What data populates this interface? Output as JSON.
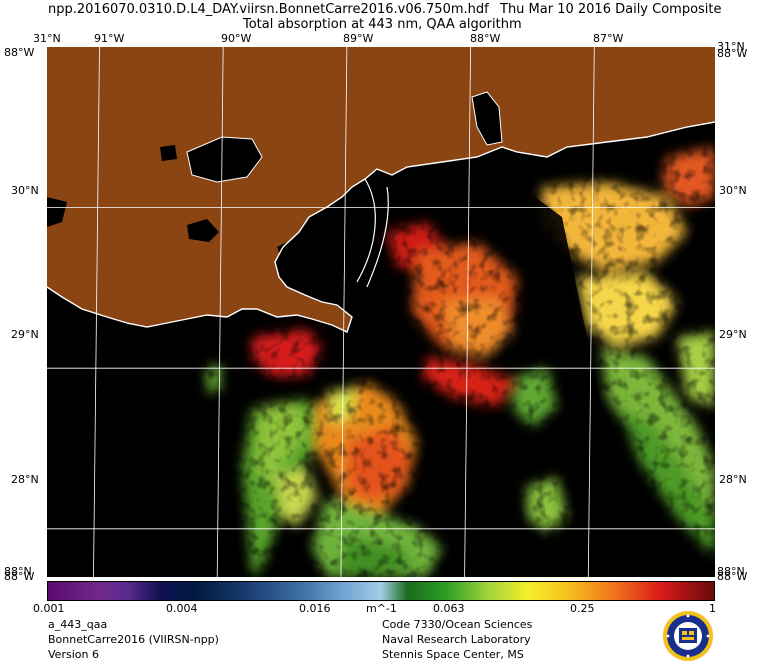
{
  "header": {
    "filename": "npp.2016070.0310.D.L4_DAY.viirsn.BonnetCarre2016.v06.750m.hdf",
    "date": "Thu Mar 10 2016 Daily Composite",
    "product": "Total absorption at 443 nm, QAA algorithm"
  },
  "map": {
    "lon_range": [
      -91.4,
      -86.0
    ],
    "lat_range": [
      27.7,
      31.0
    ],
    "longitude_labels": [
      {
        "lon": -91,
        "text": "91°W"
      },
      {
        "lon": -90,
        "text": "90°W"
      },
      {
        "lon": -89,
        "text": "89°W"
      },
      {
        "lon": -88,
        "text": "88°W"
      },
      {
        "lon": -87,
        "text": "87°W"
      }
    ],
    "latitude_labels": [
      {
        "lat": 30,
        "text": "30°N"
      },
      {
        "lat": 29,
        "text": "29°N"
      },
      {
        "lat": 28,
        "text": "28°N"
      }
    ],
    "corner_labels": {
      "top_left": "31°N",
      "top_left_under": "88°W",
      "top_right": "31°N",
      "top_right_under": "88°W",
      "bottom_left": "88°W",
      "bottom_left_under": "88°N",
      "bottom_right": "88°W",
      "bottom_right_under": "88°N"
    },
    "colors": {
      "land": "#8b4513",
      "no_data": "#000000",
      "coastline": "#ffffff",
      "grid": "#ffffff"
    }
  },
  "colorbar": {
    "tick_labels": [
      "0.001",
      "0.004",
      "0.016",
      "0.063",
      "0.25",
      "1"
    ],
    "unit": "m^-1",
    "scale": "log"
  },
  "footer": {
    "left": [
      "a_443_qaa",
      "BonnetCarre2016 (VIIRSN-npp)",
      "Version 6"
    ],
    "right": [
      "Code 7330/Ocean Sciences",
      "Naval Research Laboratory",
      "Stennis Space Center, MS"
    ]
  },
  "icons": {
    "seal": "nrl-seal-icon"
  }
}
